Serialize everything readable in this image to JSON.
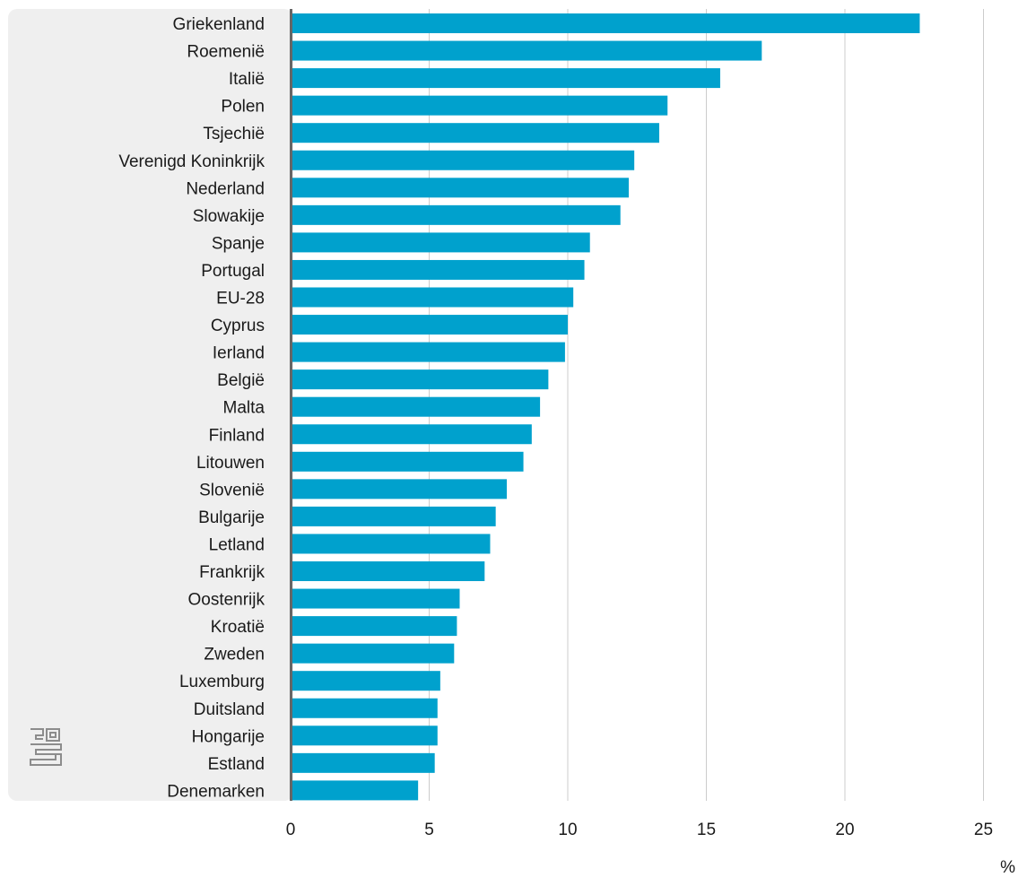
{
  "chart_data": {
    "type": "bar",
    "orientation": "horizontal",
    "categories": [
      "Griekenland",
      "Roemenië",
      "Italië",
      "Polen",
      "Tsjechië",
      "Verenigd Koninkrijk",
      "Nederland",
      "Slowakije",
      "Spanje",
      "Portugal",
      "EU-28",
      "Cyprus",
      "Ierland",
      "België",
      "Malta",
      "Finland",
      "Litouwen",
      "Slovenië",
      "Bulgarije",
      "Letland",
      "Frankrijk",
      "Oostenrijk",
      "Kroatië",
      "Zweden",
      "Luxemburg",
      "Duitsland",
      "Hongarije",
      "Estland",
      "Denemarken"
    ],
    "values": [
      22.7,
      17.0,
      15.5,
      13.6,
      13.3,
      12.4,
      12.2,
      11.9,
      10.8,
      10.6,
      10.2,
      10.0,
      9.9,
      9.3,
      9.0,
      8.7,
      8.4,
      7.8,
      7.4,
      7.2,
      7.0,
      6.1,
      6.0,
      5.9,
      5.4,
      5.3,
      5.3,
      5.2,
      4.6
    ],
    "xlim": [
      0,
      25
    ],
    "x_ticks": [
      "0",
      "5",
      "10",
      "15",
      "20",
      "25"
    ],
    "x_unit": "%",
    "grid": true,
    "bar_color": "#00a1cd",
    "label_panel_color": "#efefef",
    "axis_color": "#666666",
    "grid_color": "#cccccc"
  },
  "logo": {
    "icon": "cbs-logo-icon"
  }
}
